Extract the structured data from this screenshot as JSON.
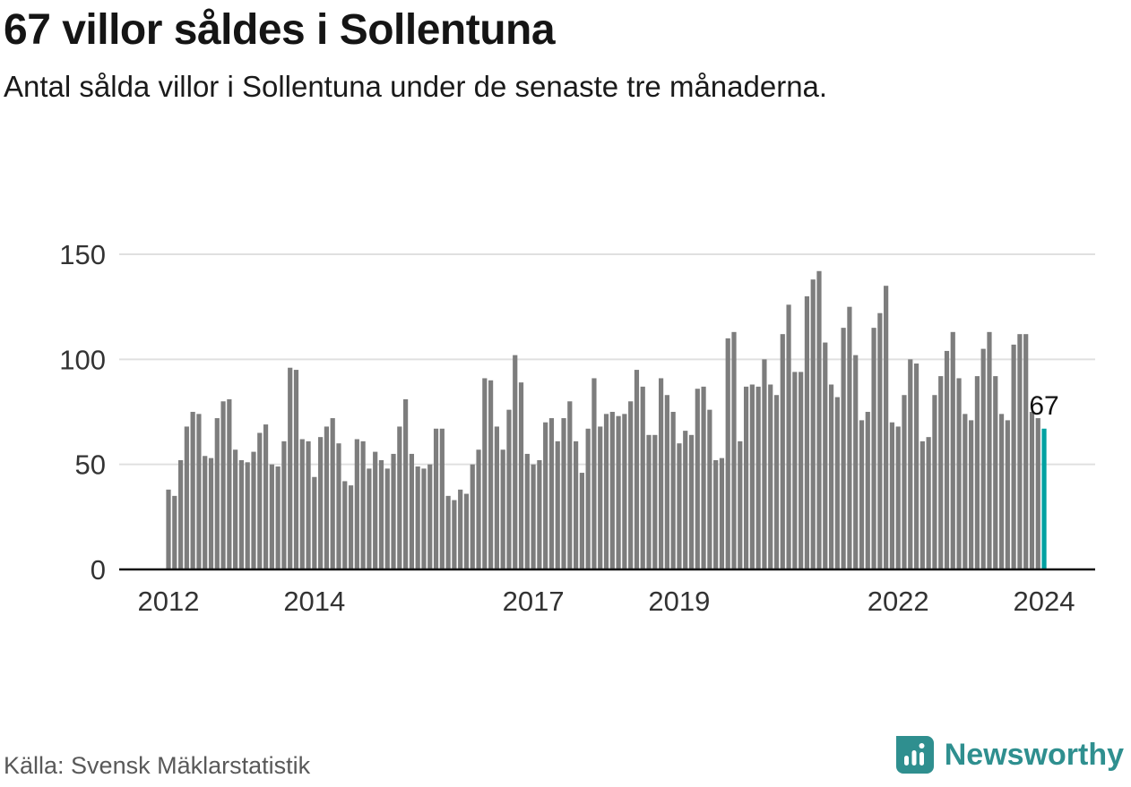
{
  "header": {
    "title": "67 villor såldes i Sollentuna",
    "subtitle": "Antal sålda villor i Sollentuna under de senaste tre månaderna."
  },
  "chart_data": {
    "type": "bar",
    "title": "67 villor såldes i Sollentuna",
    "ylabel": "",
    "xlabel": "",
    "ylim": [
      0,
      150
    ],
    "grid": true,
    "y_ticks": [
      0,
      50,
      100,
      150
    ],
    "x_ticks": [
      {
        "label": "2012",
        "month_index": 0
      },
      {
        "label": "2014",
        "month_index": 24
      },
      {
        "label": "2017",
        "month_index": 60
      },
      {
        "label": "2019",
        "month_index": 84
      },
      {
        "label": "2022",
        "month_index": 120
      },
      {
        "label": "2024",
        "month_index": 144
      }
    ],
    "x_start": "2012-01",
    "values": [
      38,
      35,
      52,
      68,
      75,
      74,
      54,
      53,
      72,
      80,
      81,
      57,
      52,
      51,
      56,
      65,
      69,
      50,
      49,
      61,
      96,
      95,
      62,
      61,
      44,
      63,
      68,
      72,
      60,
      42,
      40,
      62,
      61,
      48,
      56,
      52,
      48,
      55,
      68,
      81,
      55,
      49,
      48,
      50,
      67,
      67,
      35,
      33,
      38,
      36,
      50,
      57,
      91,
      90,
      68,
      57,
      76,
      102,
      89,
      55,
      50,
      52,
      70,
      72,
      61,
      72,
      80,
      61,
      46,
      67,
      91,
      68,
      74,
      75,
      73,
      74,
      80,
      95,
      87,
      64,
      64,
      91,
      83,
      75,
      60,
      66,
      64,
      86,
      87,
      76,
      52,
      53,
      110,
      113,
      61,
      87,
      88,
      87,
      100,
      88,
      83,
      112,
      126,
      94,
      94,
      130,
      138,
      142,
      108,
      88,
      82,
      115,
      125,
      102,
      71,
      75,
      115,
      122,
      135,
      70,
      68,
      83,
      100,
      98,
      61,
      63,
      83,
      92,
      104,
      113,
      91,
      74,
      71,
      92,
      105,
      113,
      92,
      74,
      71,
      107,
      112,
      112,
      75,
      72,
      67
    ],
    "annotation": {
      "text": "67",
      "index": 144
    },
    "highlight_last": true,
    "colors": {
      "bar": "#7d7d7d",
      "highlight": "#00a1a1",
      "grid": "#e0e0e0",
      "axis": "#111111",
      "tick_label": "#333333"
    }
  },
  "footer": {
    "source": "Källa: Svensk Mäklarstatistik",
    "brand": "Newsworthy",
    "brand_color": "#2f8f8f"
  }
}
